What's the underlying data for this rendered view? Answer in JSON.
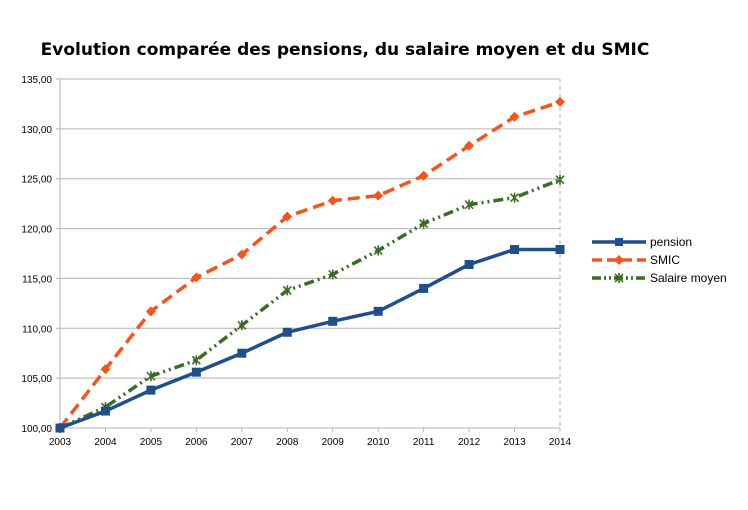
{
  "chart_data": {
    "type": "line",
    "title": "Evolution comparée des pensions, du salaire moyen et du SMIC",
    "xlabel": "",
    "ylabel": "",
    "x": [
      "2003",
      "2004",
      "2005",
      "2006",
      "2007",
      "2008",
      "2009",
      "2010",
      "2011",
      "2012",
      "2013",
      "2014"
    ],
    "yticks": [
      "100,00",
      "105,00",
      "110,00",
      "115,00",
      "120,00",
      "125,00",
      "130,00",
      "135,00"
    ],
    "ylim": [
      100,
      135
    ],
    "grid": true,
    "legend_position": "right",
    "series": [
      {
        "name": "pension",
        "color": "#1f4e8c",
        "style": "solid",
        "marker": "square",
        "values": [
          100.0,
          101.7,
          103.8,
          105.6,
          107.5,
          109.6,
          110.7,
          111.7,
          114.0,
          116.4,
          117.9,
          117.9
        ]
      },
      {
        "name": "SMIC",
        "color": "#f2561d",
        "style": "dashed",
        "marker": "diamond",
        "values": [
          100.0,
          105.9,
          111.7,
          115.1,
          117.4,
          121.2,
          122.8,
          123.3,
          125.3,
          128.3,
          131.2,
          132.7
        ]
      },
      {
        "name": "Salaire moyen",
        "color": "#3a6b27",
        "style": "dashdot",
        "marker": "star",
        "values": [
          100.0,
          102.1,
          105.2,
          106.8,
          110.3,
          113.8,
          115.4,
          117.8,
          120.5,
          122.4,
          123.1,
          124.9
        ]
      }
    ]
  }
}
